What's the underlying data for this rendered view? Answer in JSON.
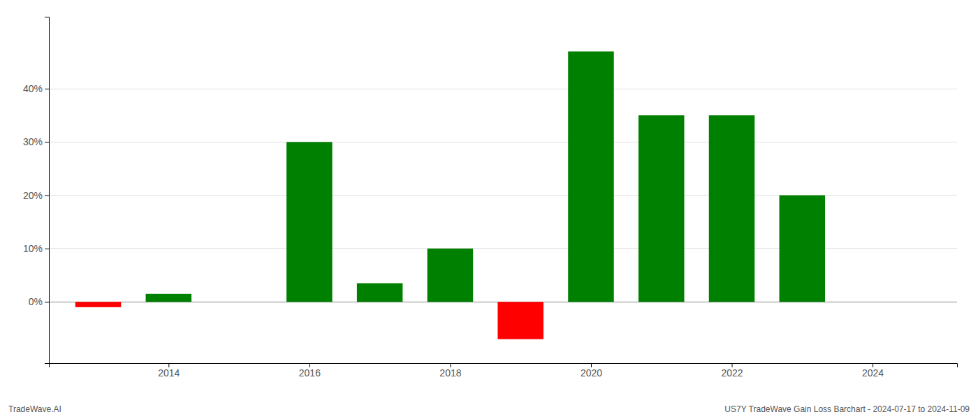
{
  "chart_data": {
    "type": "bar",
    "x": [
      2013,
      2014,
      2016,
      2017,
      2018,
      2019,
      2020,
      2021,
      2022,
      2023
    ],
    "values": [
      -0.01,
      0.015,
      0.3,
      0.035,
      0.1,
      -0.07,
      0.47,
      0.35,
      0.35,
      0.2
    ],
    "colors": [
      "#ff0000",
      "#008000",
      "#008000",
      "#008000",
      "#008000",
      "#ff0000",
      "#008000",
      "#008000",
      "#008000",
      "#008000"
    ],
    "xlim": [
      2012.3,
      2025.2
    ],
    "xticks": [
      2014,
      2016,
      2018,
      2020,
      2022,
      2024
    ],
    "ylim": [
      -0.115,
      0.535
    ],
    "yticks": [
      {
        "value": 0.0,
        "label": "0%"
      },
      {
        "value": 0.1,
        "label": "10%"
      },
      {
        "value": 0.2,
        "label": "20%"
      },
      {
        "value": 0.3,
        "label": "30%"
      },
      {
        "value": 0.4,
        "label": "40%"
      }
    ],
    "grid": true,
    "annotations": [
      "TradeWave.AI",
      "US7Y TradeWave Gain Loss Barchart - 2024-07-17 to 2024-11-09"
    ]
  }
}
